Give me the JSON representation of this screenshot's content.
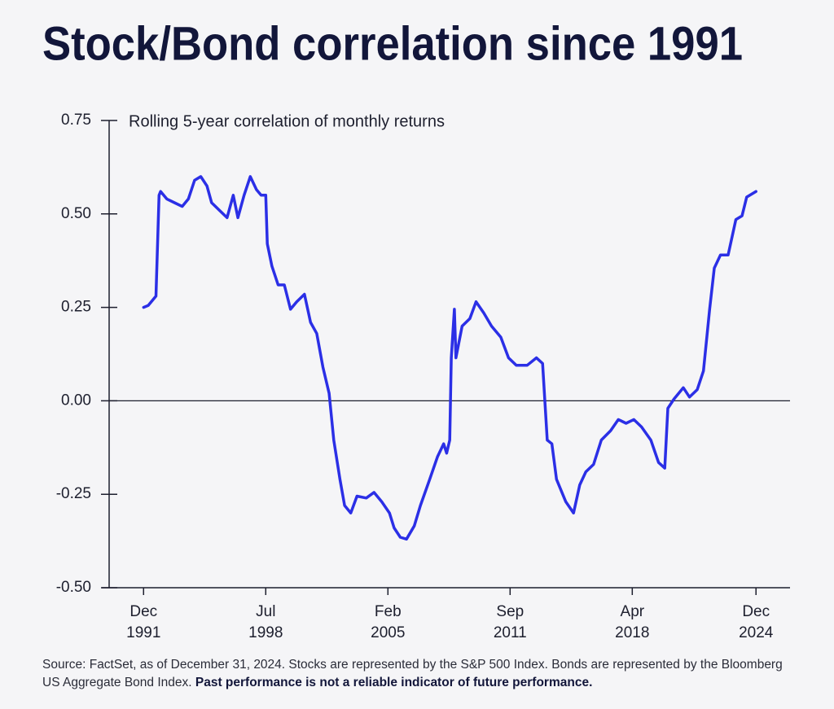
{
  "chart_data": {
    "type": "line",
    "title": "Stock/Bond correlation since 1991",
    "subtitle": "Rolling 5-year correlation of monthly returns",
    "source": "Source: FactSet, as of December 31, 2024. Stocks are represented by the S&P 500 Index. Bonds are represented by the Bloomberg US Aggregate Bond Index.",
    "disclaimer": "Past performance is not a reliable indicator of future performance.",
    "color": "#2b2fe6",
    "x": [
      "1991-12",
      "1992-03",
      "1992-06",
      "1992-08",
      "1992-10",
      "1992-11",
      "1993-03",
      "1993-08",
      "1994-01",
      "1994-05",
      "1994-09",
      "1995-01",
      "1995-05",
      "1995-08",
      "1996-01",
      "1996-06",
      "1996-10",
      "1997-01",
      "1997-05",
      "1997-09",
      "1998-01",
      "1998-04",
      "1998-07",
      "1998-08",
      "1998-11",
      "1999-03",
      "1999-07",
      "1999-11",
      "2000-03",
      "2000-08",
      "2000-12",
      "2001-04",
      "2001-08",
      "2001-12",
      "2002-03",
      "2002-07",
      "2002-10",
      "2003-02",
      "2003-06",
      "2003-12",
      "2004-05",
      "2004-10",
      "2005-03",
      "2005-06",
      "2005-10",
      "2006-02",
      "2006-07",
      "2006-11",
      "2007-05",
      "2007-10",
      "2008-02",
      "2008-04",
      "2008-06",
      "2008-07",
      "2008-09",
      "2008-10",
      "2009-02",
      "2009-07",
      "2009-11",
      "2010-04",
      "2010-09",
      "2011-03",
      "2011-08",
      "2012-01",
      "2012-08",
      "2013-02",
      "2013-06",
      "2013-09",
      "2013-12",
      "2014-03",
      "2014-09",
      "2015-02",
      "2015-06",
      "2015-10",
      "2016-03",
      "2016-08",
      "2017-02",
      "2017-07",
      "2017-12",
      "2018-05",
      "2018-10",
      "2019-04",
      "2019-09",
      "2020-01",
      "2020-03",
      "2020-07",
      "2021-01",
      "2021-05",
      "2021-10",
      "2022-02",
      "2022-06",
      "2022-09",
      "2023-01",
      "2023-06",
      "2023-11",
      "2024-03",
      "2024-06",
      "2024-12"
    ],
    "values": [
      0.25,
      0.255,
      0.27,
      0.28,
      0.55,
      0.56,
      0.54,
      0.53,
      0.52,
      0.54,
      0.59,
      0.6,
      0.575,
      0.53,
      0.51,
      0.49,
      0.55,
      0.49,
      0.55,
      0.6,
      0.565,
      0.55,
      0.55,
      0.42,
      0.36,
      0.31,
      0.31,
      0.245,
      0.265,
      0.285,
      0.21,
      0.18,
      0.09,
      0.02,
      -0.105,
      -0.21,
      -0.28,
      -0.3,
      -0.255,
      -0.26,
      -0.245,
      -0.27,
      -0.3,
      -0.34,
      -0.365,
      -0.37,
      -0.335,
      -0.28,
      -0.21,
      -0.15,
      -0.115,
      -0.14,
      -0.105,
      0.115,
      0.245,
      0.115,
      0.2,
      0.22,
      0.265,
      0.235,
      0.2,
      0.17,
      0.115,
      0.095,
      0.095,
      0.115,
      0.1,
      -0.105,
      -0.115,
      -0.21,
      -0.27,
      -0.3,
      -0.225,
      -0.19,
      -0.17,
      -0.105,
      -0.08,
      -0.05,
      -0.06,
      -0.05,
      -0.07,
      -0.105,
      -0.165,
      -0.18,
      -0.02,
      0.005,
      0.035,
      0.01,
      0.03,
      0.08,
      0.245,
      0.355,
      0.39,
      0.39,
      0.485,
      0.495,
      0.545,
      0.56
    ],
    "xlim": [
      "1989-09",
      "2026-10"
    ],
    "xticks": [
      {
        "value": "1991-12",
        "label": "Dec 1991"
      },
      {
        "value": "1998-07",
        "label": "Jul 1998"
      },
      {
        "value": "2005-02",
        "label": "Feb 2005"
      },
      {
        "value": "2011-09",
        "label": "Sep 2011"
      },
      {
        "value": "2018-04",
        "label": "Apr 2018"
      },
      {
        "value": "2024-12",
        "label": "Dec 2024"
      }
    ],
    "ylim": [
      -0.5,
      0.75
    ],
    "yticks": [
      0.75,
      {
        "value": 0.5,
        "label": "0.50"
      },
      0.25,
      {
        "value": 0,
        "label": "0.00"
      },
      -0.25,
      {
        "value": -0.5,
        "label": "-0.50"
      }
    ]
  }
}
